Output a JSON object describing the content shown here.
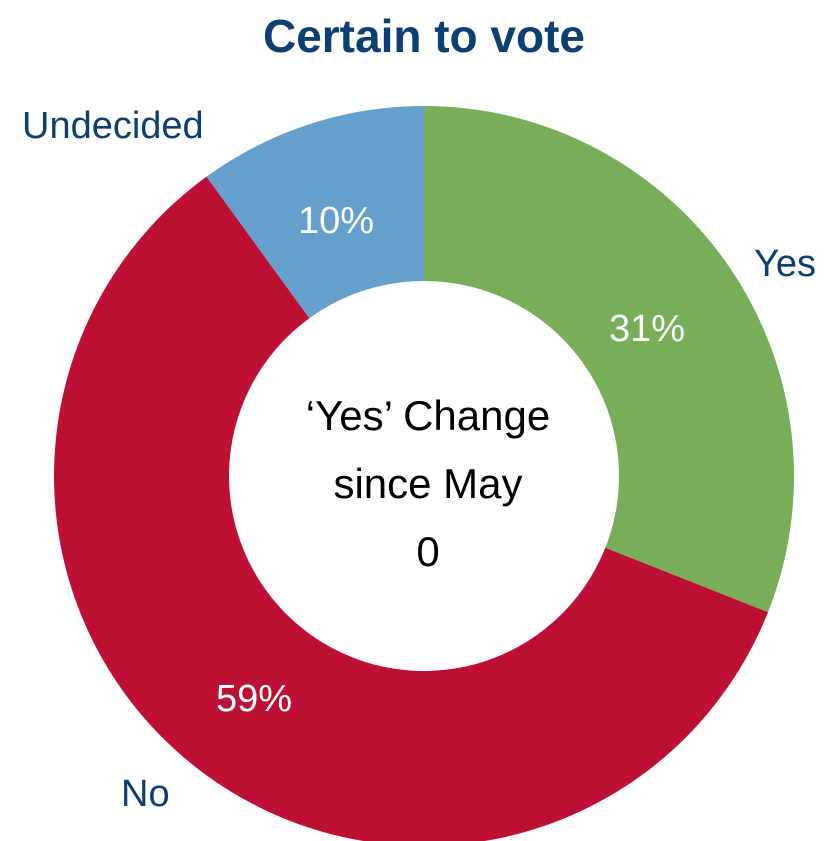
{
  "chart_data": {
    "type": "pie",
    "variant": "donut",
    "title": "Certain to vote",
    "categories": [
      "Yes",
      "No",
      "Undecided"
    ],
    "values": [
      31,
      59,
      10
    ],
    "value_labels": [
      "31%",
      "59%",
      "10%"
    ],
    "colors": [
      "#77ae57",
      "#be1034",
      "#64a0cb"
    ],
    "start_angle_deg": 0,
    "direction": "clockwise",
    "center_text": [
      "‘Yes’ Change",
      "since May",
      "0"
    ],
    "legend": "none"
  },
  "colors": {
    "title": "#0d3f73",
    "category_label": "#0d3f73",
    "value_label": "#ffffff",
    "center_text": "#000000",
    "background": "#ffffff"
  }
}
